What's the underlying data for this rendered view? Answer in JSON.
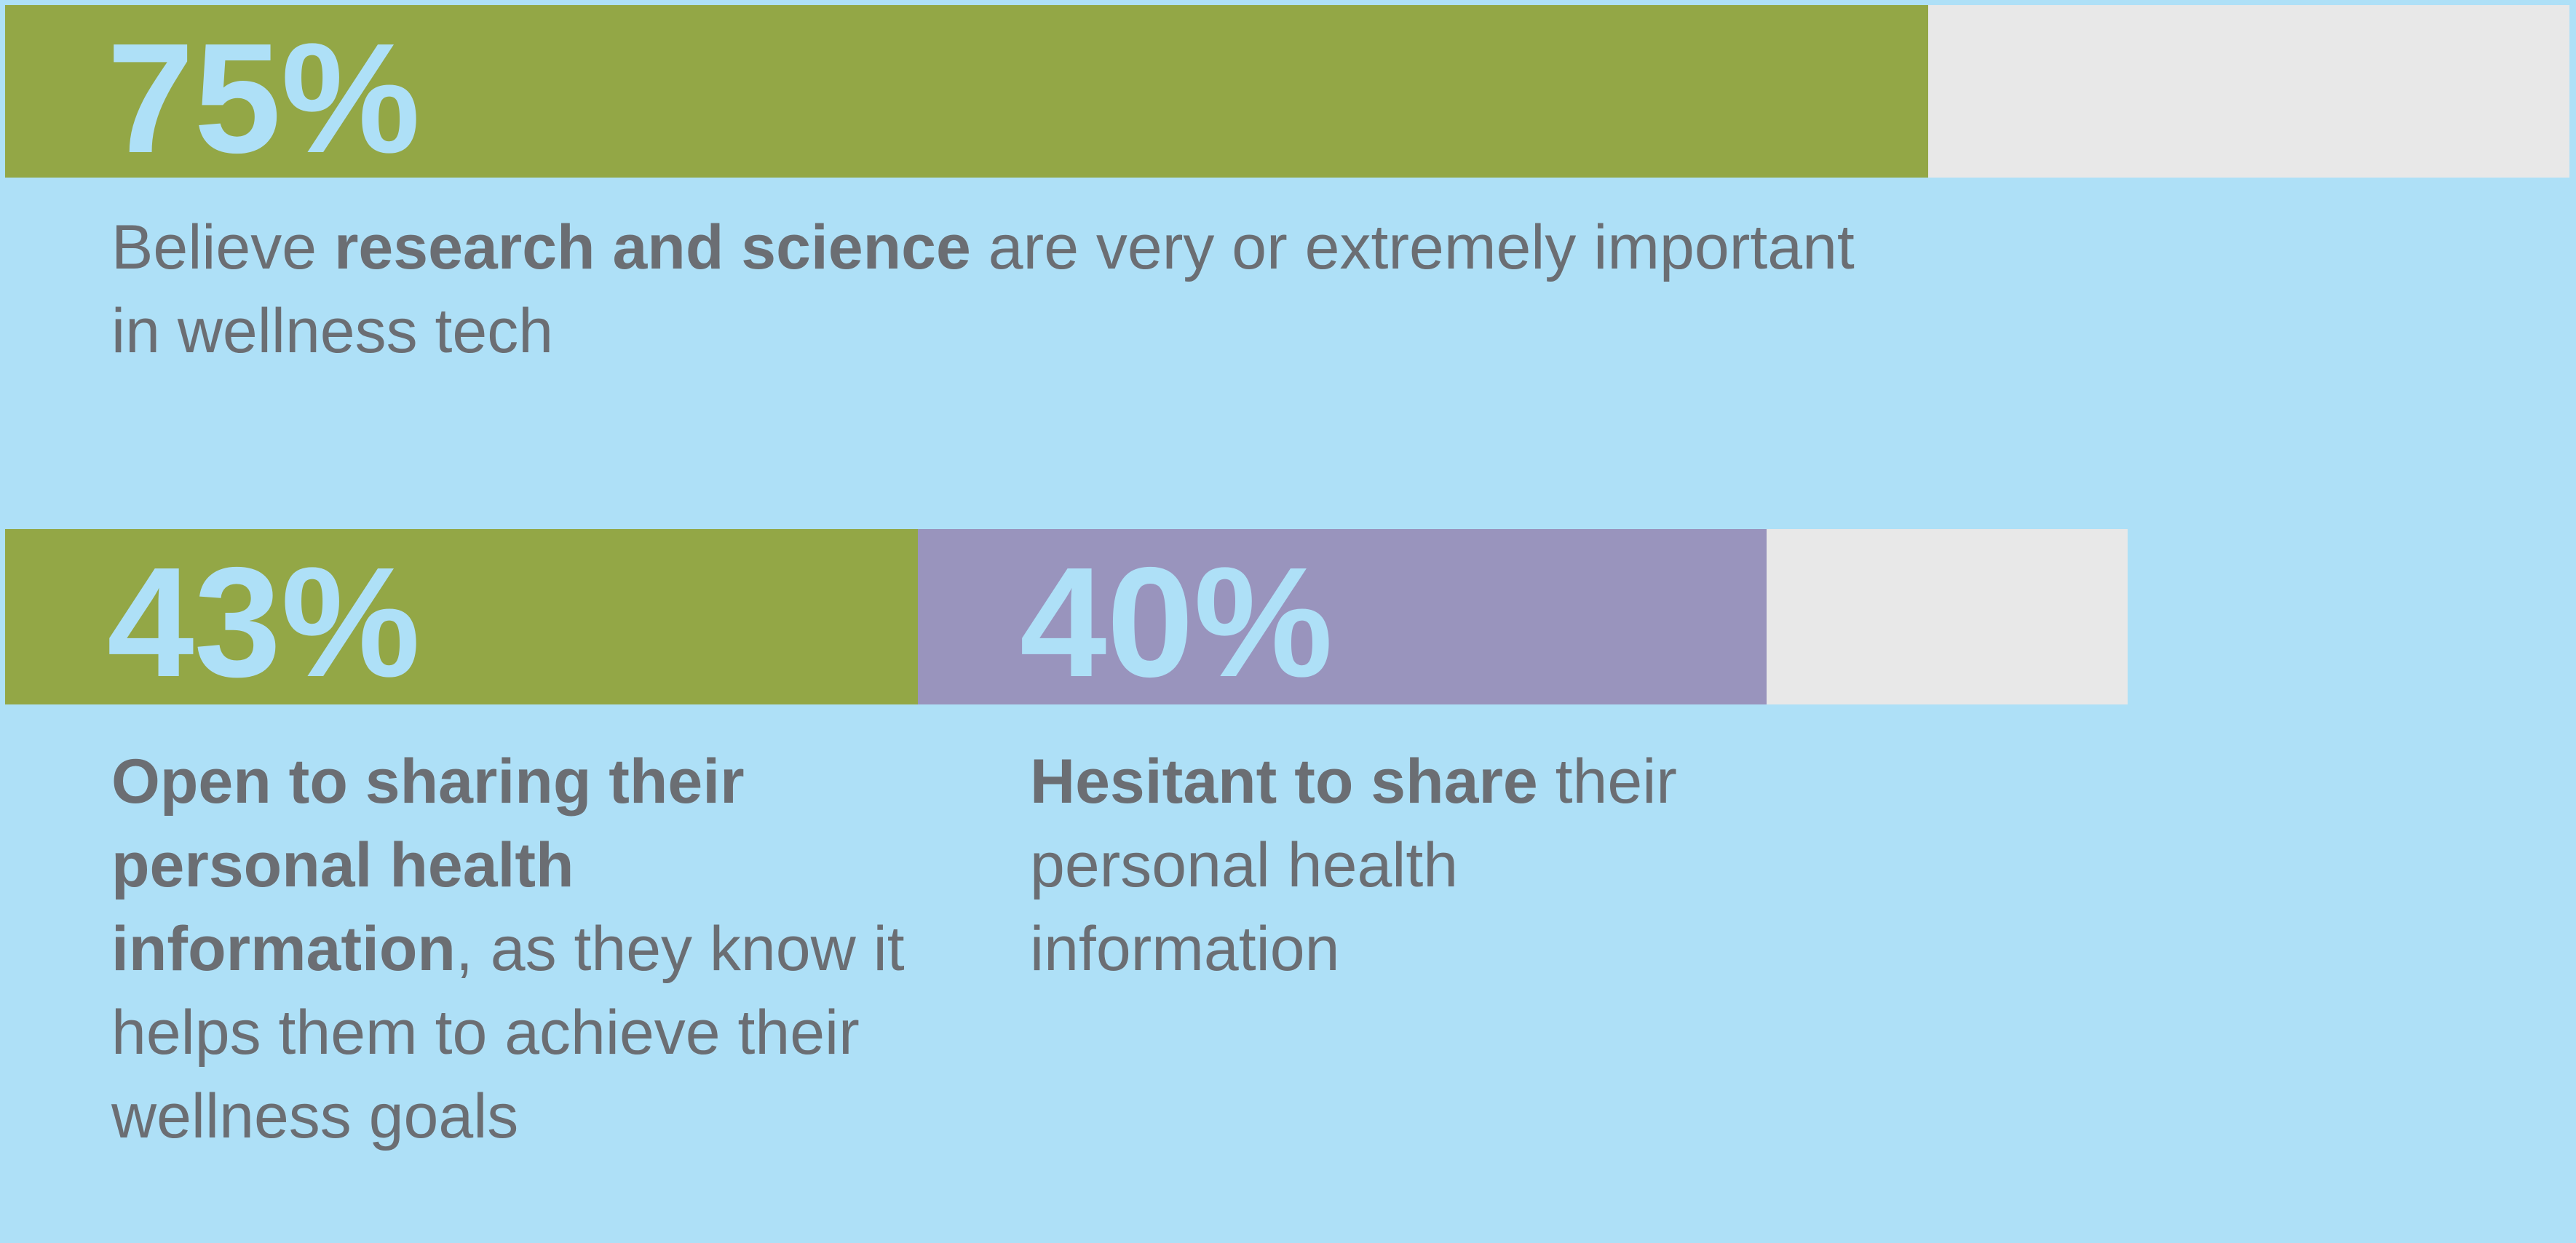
{
  "rows": [
    {
      "bars": [
        {
          "value": 75,
          "label": "75%",
          "color": "#93a746"
        }
      ],
      "track_color": "#e8e8e8",
      "captions": [
        [
          {
            "text": "Believe ",
            "bold": false
          },
          {
            "text": "research and science",
            "bold": true
          },
          {
            "text": " are very or extremely important in wellness tech",
            "bold": false
          }
        ]
      ]
    },
    {
      "bars": [
        {
          "value": 43,
          "label": "43%",
          "color": "#93a746"
        },
        {
          "value": 40,
          "label": "40%",
          "color": "#9994bd"
        }
      ],
      "track_color": "#e8e8e8",
      "captions": [
        [
          {
            "text": "Open to sharing their personal health information",
            "bold": true
          },
          {
            "text": ", as they know it helps them to achieve their wellness goals",
            "bold": false
          }
        ],
        [
          {
            "text": "Hesitant to share",
            "bold": true
          },
          {
            "text": " their personal health information",
            "bold": false
          }
        ]
      ]
    }
  ]
}
